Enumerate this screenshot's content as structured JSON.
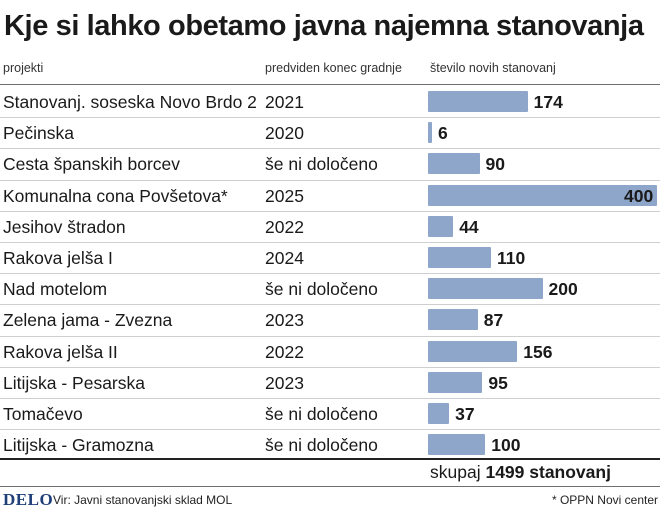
{
  "title": "Kje si lahko obetamo javna najemna stanovanja",
  "columns": {
    "project": "projekti",
    "completion": "predviden konec gradnje",
    "units": "število novih stanovanj"
  },
  "chart_data": {
    "type": "bar",
    "orientation": "horizontal",
    "title": "Kje si lahko obetamo javna najemna stanovanja",
    "categories": [
      "Stanovanj. soseska Novo Brdo 2",
      "Pečinska",
      "Cesta španskih borcev",
      "Komunalna cona Povšetova*",
      "Jesihov štradon",
      "Rakova jelša I",
      "Nad motelom",
      "Zelena jama - Zvezna",
      "Rakova jelša II",
      "Litijska - Pesarska",
      "Tomačevo",
      "Litijska - Gramozna"
    ],
    "completion": [
      "2021",
      "2020",
      "še ni določeno",
      "2025",
      "2022",
      "2024",
      "še ni določeno",
      "2023",
      "2022",
      "2023",
      "še ni določeno",
      "še ni določeno"
    ],
    "values": [
      174,
      6,
      90,
      400,
      44,
      110,
      200,
      87,
      156,
      95,
      37,
      100
    ],
    "value_labels": [
      "174",
      "6",
      "90",
      "400",
      "44",
      "110",
      "200",
      "87",
      "156",
      "95",
      "37",
      "100"
    ],
    "xlim": [
      0,
      400
    ],
    "bar_color": "#8ea6ca",
    "grid": false
  },
  "total": {
    "prefix": "skupaj",
    "value": "1499 stanovanj"
  },
  "footer": {
    "logo": "DELO",
    "source": "Vir: Javni stanovanjski sklad MOL",
    "note": "* OPPN Novi center"
  },
  "colors": {
    "bar": "#8ea6ca",
    "logo": "#1f3f79"
  }
}
